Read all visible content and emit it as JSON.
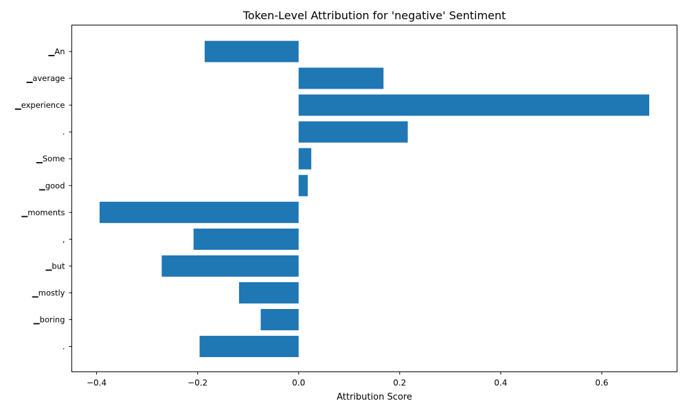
{
  "chart_data": {
    "type": "bar",
    "orientation": "horizontal",
    "title": "Token-Level Attribution for 'negative' Sentiment",
    "xlabel": "Attribution Score",
    "ylabel": "",
    "categories": [
      "▁An",
      "▁average",
      "▁experience",
      ".",
      "▁Some",
      "▁good",
      "▁moments",
      ",",
      "▁but",
      "▁mostly",
      "▁boring",
      "."
    ],
    "values": [
      -0.186,
      0.168,
      0.694,
      0.216,
      0.025,
      0.018,
      -0.394,
      -0.208,
      -0.271,
      -0.118,
      -0.075,
      -0.196
    ],
    "xlim": [
      -0.449,
      0.749
    ],
    "xticks": [
      -0.4,
      -0.2,
      0.0,
      0.2,
      0.4,
      0.6
    ],
    "xtick_labels": [
      "−0.4",
      "−0.2",
      "0.0",
      "0.2",
      "0.4",
      "0.6"
    ],
    "bar_color": "#1f77b4",
    "grid": false,
    "legend": "none"
  }
}
